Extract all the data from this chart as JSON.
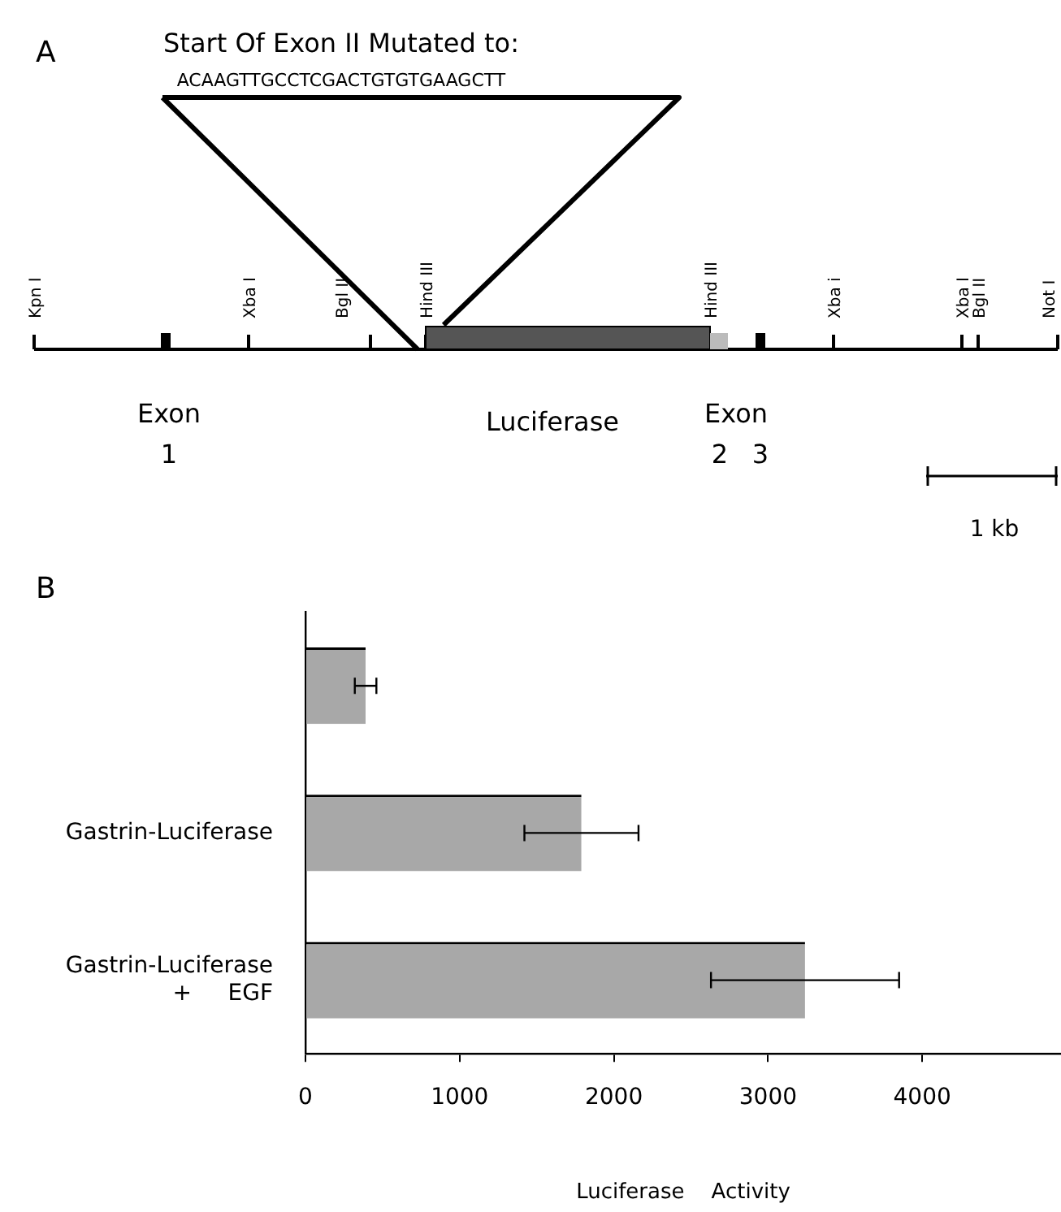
{
  "chart_data": [
    {
      "type": "other",
      "title": "A",
      "annotations": [
        "Start Of Exon II Mutated to:",
        "ACAAGTTGCCTCGACTGTGTGAAGCTT",
        "Kpn I",
        "Xba I",
        "Bgl II",
        "Hind III",
        "Hind III",
        "Xba i",
        "Xba I",
        "Bgl II",
        "Not I",
        "Exon",
        "1",
        "Luciferase",
        "Exon",
        "2",
        "3",
        "1 kb"
      ]
    },
    {
      "type": "bar",
      "orientation": "horizontal",
      "title": "B",
      "categories": [
        null,
        "Gastrin-Luciferase",
        "Gastrin-Luciferase\n+     EGF"
      ],
      "values": [
        390,
        1790,
        3240
      ],
      "errors": [
        70,
        370,
        610
      ],
      "color": "#a8a8a8",
      "xlim": [
        0,
        4900
      ],
      "xticks": [
        0,
        1000,
        2000,
        3000,
        4000
      ],
      "xlabel": "Luciferase    Activity",
      "grid": false
    }
  ]
}
